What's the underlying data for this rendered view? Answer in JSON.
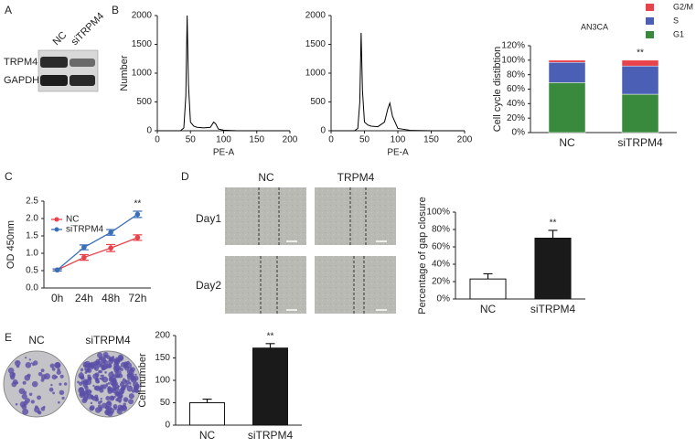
{
  "figure": {
    "panel_labels": [
      "A",
      "B",
      "C",
      "D",
      "E"
    ],
    "blot": {
      "lanes": [
        "NC",
        "siTRPM4"
      ],
      "rows": [
        "TRPM4",
        "GAPDH"
      ]
    },
    "wound": {
      "columns": [
        "NC",
        "TRPM4"
      ],
      "rows": [
        "Day1",
        "Day2"
      ]
    },
    "colony": {
      "labels": [
        "NC",
        "siTRPM4"
      ]
    }
  },
  "chart_data": [
    {
      "type": "area",
      "xlabel": "PE-A",
      "ylabel": "Number",
      "color": "#000000",
      "x": [
        0,
        20,
        35,
        40,
        43,
        45,
        47,
        50,
        55,
        60,
        70,
        80,
        85,
        88,
        92,
        100,
        120,
        150,
        200
      ],
      "values": [
        0,
        0,
        0,
        50,
        600,
        2000,
        800,
        150,
        80,
        60,
        50,
        60,
        150,
        120,
        30,
        10,
        0,
        0,
        0
      ],
      "xlim": [
        0,
        200
      ],
      "xticks": [
        0,
        50,
        100,
        150,
        200
      ],
      "ylim": [
        0,
        2000
      ],
      "yticks": [
        0,
        500,
        1000,
        1500,
        2000
      ]
    },
    {
      "type": "area",
      "xlabel": "PE-A",
      "color": "#000000",
      "x": [
        0,
        20,
        35,
        40,
        43,
        45,
        47,
        50,
        55,
        60,
        70,
        80,
        85,
        88,
        92,
        100,
        120,
        150,
        200
      ],
      "values": [
        0,
        0,
        0,
        40,
        500,
        1700,
        700,
        150,
        100,
        80,
        70,
        150,
        380,
        480,
        250,
        40,
        5,
        0,
        0
      ],
      "xlim": [
        0,
        200
      ],
      "xticks": [
        0,
        50,
        100,
        150,
        200
      ],
      "ylim": [
        0,
        2000
      ],
      "yticks": [
        0,
        500,
        1000,
        1500,
        2000
      ]
    },
    {
      "type": "stacked_bar",
      "title": "AN3CA",
      "ylabel": "Cell cycle distibtion",
      "annotation": "**",
      "categories": [
        "NC",
        "siTRPM4"
      ],
      "series": [
        {
          "name": "G1",
          "color": "#3a8a3e",
          "values": [
            69,
            53
          ]
        },
        {
          "name": "S",
          "color": "#4b5fb4",
          "values": [
            28,
            39
          ]
        },
        {
          "name": "G2/M",
          "color": "#e8424a",
          "values": [
            3,
            8
          ]
        }
      ],
      "ylim": [
        0,
        120
      ],
      "yticks": [
        {
          "value": 0,
          "label": "0%"
        },
        {
          "value": 20,
          "label": "20%"
        },
        {
          "value": 40,
          "label": "40%"
        },
        {
          "value": 60,
          "label": "60%"
        },
        {
          "value": 80,
          "label": "80%"
        },
        {
          "value": 100,
          "label": "100%"
        },
        {
          "value": 120,
          "label": "120%"
        }
      ]
    },
    {
      "type": "line",
      "ylabel": "OD 450nm",
      "annotation": "**",
      "categories": [
        "0h",
        "24h",
        "48h",
        "72h"
      ],
      "series": [
        {
          "name": "NC",
          "color": "#e8424a",
          "values": [
            0.52,
            0.88,
            1.15,
            1.45
          ],
          "errors": [
            0.03,
            0.08,
            0.1,
            0.08
          ]
        },
        {
          "name": "siTRPM4",
          "color": "#3a6fb8",
          "values": [
            0.52,
            1.17,
            1.6,
            2.12
          ],
          "errors": [
            0.03,
            0.07,
            0.08,
            0.09
          ]
        }
      ],
      "ylim": [
        0,
        2.5
      ],
      "yticks": [
        {
          "value": 0,
          "label": "0.0"
        },
        0.5,
        {
          "value": 1,
          "label": "1.0"
        },
        1.5,
        {
          "value": 2,
          "label": "2.0"
        },
        2.5
      ]
    },
    {
      "type": "bar",
      "ylabel": "Percentage of gap closure",
      "annotation": "**",
      "categories": [
        "NC",
        "siTRPM4"
      ],
      "values": [
        23,
        70
      ],
      "errors": [
        6,
        9
      ],
      "colors": [
        "#ffffff",
        "#1a1a1a"
      ],
      "ylim": [
        0,
        100
      ],
      "yticks": [
        {
          "value": 0,
          "label": "0%"
        },
        {
          "value": 20,
          "label": "20%"
        },
        {
          "value": 40,
          "label": "40%"
        },
        {
          "value": 60,
          "label": "60%"
        },
        {
          "value": 80,
          "label": "80%"
        },
        {
          "value": 100,
          "label": "100%"
        }
      ]
    },
    {
      "type": "bar",
      "ylabel": "Cell number",
      "annotation": "**",
      "categories": [
        "NC",
        "siTRPM4"
      ],
      "values": [
        50,
        172
      ],
      "errors": [
        8,
        10
      ],
      "colors": [
        "#ffffff",
        "#1a1a1a"
      ],
      "ylim": [
        0,
        200
      ],
      "yticks": [
        0,
        50,
        100,
        150,
        200
      ]
    }
  ]
}
